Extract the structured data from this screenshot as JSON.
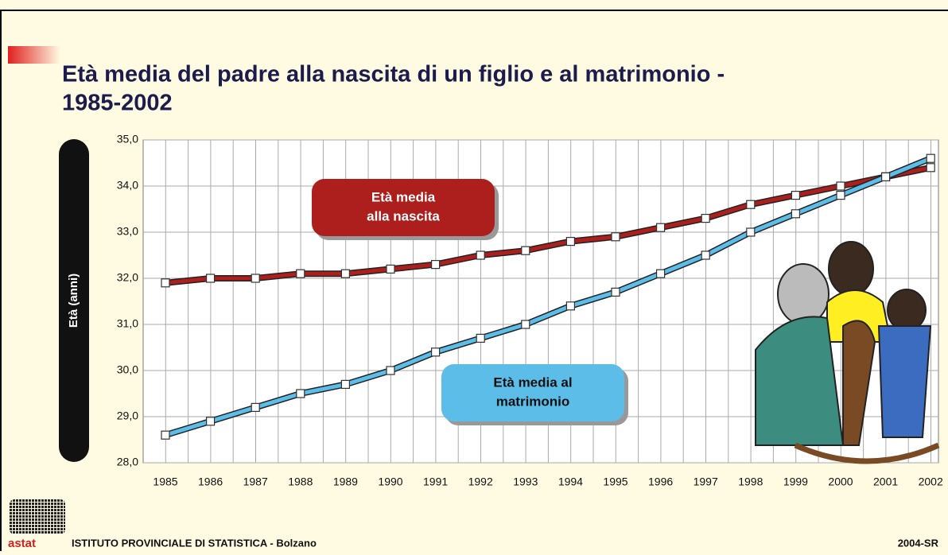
{
  "chart_data": {
    "type": "line",
    "title_lines": [
      "Età media del padre alla nascita di un figlio e al matrimonio -",
      "1985-2002"
    ],
    "y_label": "Età (anni)",
    "categories": [
      "1985",
      "1986",
      "1987",
      "1988",
      "1989",
      "1990",
      "1991",
      "1992",
      "1993",
      "1994",
      "1995",
      "1996",
      "1997",
      "1998",
      "1999",
      "2000",
      "2001",
      "2002"
    ],
    "series": [
      {
        "name": "Età media alla nascita",
        "name_lines": [
          "Età media",
          "alla nascita"
        ],
        "color": "#ad1f1c",
        "values": [
          31.9,
          32.0,
          32.0,
          32.1,
          32.1,
          32.2,
          32.3,
          32.5,
          32.6,
          32.8,
          32.9,
          33.1,
          33.3,
          33.6,
          33.8,
          34.0,
          34.2,
          34.4
        ]
      },
      {
        "name": "Età media al matrimonio",
        "name_lines": [
          "Età media al",
          "matrimonio"
        ],
        "color": "#5bbde8",
        "values": [
          28.6,
          28.9,
          29.2,
          29.5,
          29.7,
          30.0,
          30.4,
          30.7,
          31.0,
          31.4,
          31.7,
          32.1,
          32.5,
          33.0,
          33.4,
          33.8,
          34.2,
          34.6
        ]
      }
    ],
    "ylim": [
      28,
      35
    ],
    "yticks": [
      {
        "value": 28,
        "label": "28,0"
      },
      {
        "value": 29,
        "label": "29,0"
      },
      {
        "value": 30,
        "label": "30,0"
      },
      {
        "value": 31,
        "label": "31,0"
      },
      {
        "value": 32,
        "label": "32,0"
      },
      {
        "value": 33,
        "label": "33,0"
      },
      {
        "value": 34,
        "label": "34,0"
      },
      {
        "value": 35,
        "label": "35,0"
      }
    ],
    "grid": true
  },
  "footer": {
    "logo": "astat",
    "institute": "ISTITUTO PROVINCIALE DI STATISTICA - Bolzano",
    "code": "2004-SR"
  }
}
